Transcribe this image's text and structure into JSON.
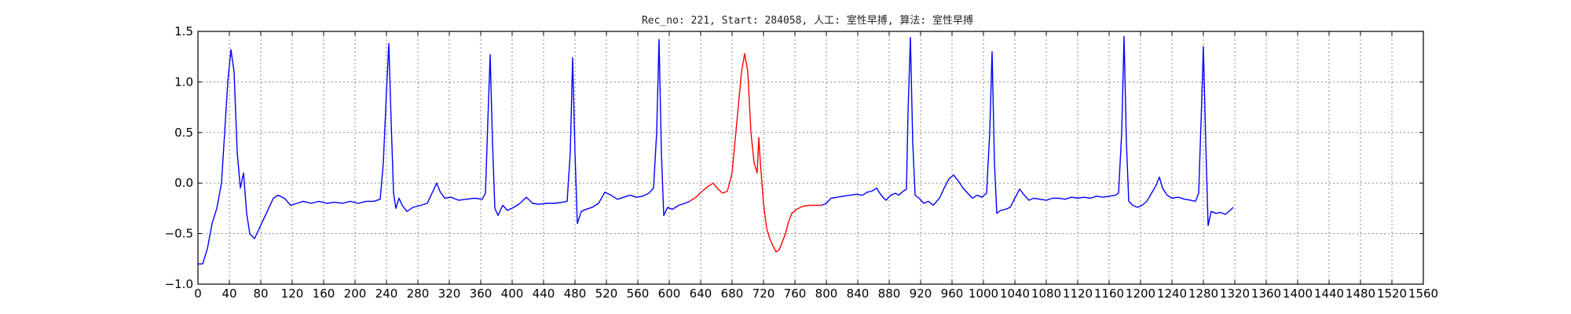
{
  "chart_data": {
    "type": "line",
    "title": "Rec_no: 221, Start: 284058, 人工: 室性早搏, 算法: 室性早搏",
    "xlabel": "",
    "ylabel": "",
    "xlim": [
      0,
      1560
    ],
    "ylim": [
      -1.0,
      1.5
    ],
    "grid": true,
    "y_ticks": [
      -1.0,
      -0.5,
      0.0,
      0.5,
      1.0,
      1.5
    ],
    "y_tick_labels": [
      "−1.0",
      "−0.5",
      "0.0",
      "0.5",
      "1.0",
      "1.5"
    ],
    "x_ticks": [
      0,
      40,
      80,
      120,
      160,
      200,
      240,
      280,
      320,
      360,
      400,
      440,
      480,
      520,
      560,
      600,
      640,
      680,
      720,
      760,
      800,
      840,
      880,
      920,
      960,
      1000,
      1040,
      1080,
      1120,
      1160,
      1200,
      1240,
      1280,
      1320,
      1360,
      1400,
      1440,
      1480,
      1520,
      1560
    ],
    "x_tick_labels": [
      "0",
      "40",
      "80",
      "120",
      "160",
      "200",
      "240",
      "280",
      "320",
      "360",
      "400",
      "440",
      "480",
      "520",
      "560",
      "600",
      "640",
      "680",
      "720",
      "760",
      "800",
      "840",
      "880",
      "920",
      "960",
      "1000",
      "1040",
      "1080",
      "1120",
      "1160",
      "1200",
      "1240",
      "1280",
      "1320",
      "1360",
      "1400",
      "1440",
      "1480",
      "1520",
      "1560"
    ],
    "series": [
      {
        "color": "#0000ff",
        "segments": [
          [
            [
              0,
              -0.8
            ],
            [
              6,
              -0.8
            ],
            [
              12,
              -0.65
            ],
            [
              18,
              -0.4
            ],
            [
              24,
              -0.25
            ],
            [
              30,
              0.0
            ],
            [
              34,
              0.5
            ],
            [
              38,
              1.0
            ],
            [
              42,
              1.32
            ],
            [
              46,
              1.1
            ],
            [
              50,
              0.3
            ],
            [
              54,
              -0.05
            ],
            [
              58,
              0.1
            ],
            [
              62,
              -0.3
            ],
            [
              66,
              -0.5
            ],
            [
              72,
              -0.55
            ],
            [
              78,
              -0.45
            ],
            [
              84,
              -0.35
            ],
            [
              90,
              -0.25
            ],
            [
              96,
              -0.15
            ],
            [
              102,
              -0.12
            ],
            [
              110,
              -0.15
            ],
            [
              118,
              -0.22
            ],
            [
              126,
              -0.2
            ],
            [
              134,
              -0.18
            ],
            [
              144,
              -0.2
            ],
            [
              154,
              -0.18
            ],
            [
              164,
              -0.2
            ],
            [
              174,
              -0.19
            ],
            [
              184,
              -0.2
            ],
            [
              194,
              -0.18
            ],
            [
              204,
              -0.2
            ],
            [
              214,
              -0.18
            ],
            [
              224,
              -0.18
            ],
            [
              232,
              -0.16
            ],
            [
              236,
              0.2
            ],
            [
              240,
              0.9
            ],
            [
              243,
              1.38
            ],
            [
              246,
              0.6
            ],
            [
              249,
              -0.1
            ],
            [
              252,
              -0.25
            ],
            [
              256,
              -0.15
            ],
            [
              260,
              -0.22
            ],
            [
              266,
              -0.28
            ],
            [
              274,
              -0.24
            ],
            [
              284,
              -0.22
            ],
            [
              292,
              -0.2
            ],
            [
              298,
              -0.1
            ],
            [
              304,
              0.0
            ],
            [
              308,
              -0.08
            ],
            [
              314,
              -0.15
            ],
            [
              322,
              -0.14
            ],
            [
              332,
              -0.17
            ],
            [
              342,
              -0.16
            ],
            [
              352,
              -0.15
            ],
            [
              362,
              -0.16
            ],
            [
              366,
              -0.1
            ],
            [
              369,
              0.6
            ],
            [
              372,
              1.27
            ],
            [
              375,
              0.4
            ],
            [
              378,
              -0.25
            ],
            [
              382,
              -0.32
            ],
            [
              388,
              -0.22
            ],
            [
              394,
              -0.27
            ],
            [
              402,
              -0.24
            ],
            [
              410,
              -0.2
            ],
            [
              418,
              -0.14
            ],
            [
              426,
              -0.2
            ],
            [
              434,
              -0.21
            ],
            [
              444,
              -0.2
            ],
            [
              454,
              -0.2
            ],
            [
              464,
              -0.19
            ],
            [
              470,
              -0.18
            ],
            [
              474,
              0.3
            ],
            [
              477,
              1.24
            ],
            [
              480,
              0.3
            ],
            [
              483,
              -0.4
            ],
            [
              488,
              -0.28
            ],
            [
              494,
              -0.26
            ],
            [
              502,
              -0.24
            ],
            [
              510,
              -0.2
            ],
            [
              518,
              -0.09
            ],
            [
              526,
              -0.12
            ],
            [
              534,
              -0.16
            ],
            [
              542,
              -0.14
            ],
            [
              550,
              -0.12
            ],
            [
              558,
              -0.14
            ],
            [
              566,
              -0.13
            ],
            [
              574,
              -0.1
            ],
            [
              580,
              -0.05
            ],
            [
              584,
              0.5
            ],
            [
              587,
              1.42
            ],
            [
              590,
              0.3
            ],
            [
              593,
              -0.32
            ],
            [
              598,
              -0.24
            ],
            [
              604,
              -0.26
            ],
            [
              612,
              -0.22
            ],
            [
              620,
              -0.2
            ],
            [
              626,
              -0.18
            ]
          ],
          [
            [
              794,
              -0.22
            ],
            [
              800,
              -0.2
            ],
            [
              806,
              -0.15
            ],
            [
              814,
              -0.14
            ],
            [
              822,
              -0.13
            ],
            [
              830,
              -0.12
            ],
            [
              838,
              -0.11
            ],
            [
              846,
              -0.12
            ],
            [
              852,
              -0.09
            ],
            [
              858,
              -0.08
            ],
            [
              864,
              -0.05
            ],
            [
              868,
              -0.1
            ],
            [
              872,
              -0.14
            ],
            [
              876,
              -0.17
            ],
            [
              882,
              -0.12
            ],
            [
              888,
              -0.1
            ],
            [
              892,
              -0.12
            ],
            [
              898,
              -0.08
            ],
            [
              902,
              -0.06
            ],
            [
              904,
              0.7
            ],
            [
              907,
              1.44
            ],
            [
              910,
              0.4
            ],
            [
              913,
              -0.12
            ],
            [
              918,
              -0.15
            ],
            [
              924,
              -0.2
            ],
            [
              930,
              -0.18
            ],
            [
              936,
              -0.22
            ],
            [
              944,
              -0.15
            ],
            [
              950,
              -0.05
            ],
            [
              956,
              0.04
            ],
            [
              962,
              0.08
            ],
            [
              968,
              0.02
            ],
            [
              974,
              -0.05
            ],
            [
              980,
              -0.1
            ],
            [
              986,
              -0.15
            ],
            [
              992,
              -0.12
            ],
            [
              998,
              -0.14
            ],
            [
              1004,
              -0.1
            ],
            [
              1008,
              0.5
            ],
            [
              1011,
              1.3
            ],
            [
              1014,
              0.2
            ],
            [
              1017,
              -0.3
            ],
            [
              1022,
              -0.27
            ],
            [
              1028,
              -0.26
            ],
            [
              1034,
              -0.24
            ],
            [
              1040,
              -0.15
            ],
            [
              1046,
              -0.06
            ],
            [
              1052,
              -0.12
            ],
            [
              1058,
              -0.17
            ],
            [
              1064,
              -0.15
            ],
            [
              1072,
              -0.16
            ],
            [
              1080,
              -0.17
            ],
            [
              1088,
              -0.15
            ],
            [
              1096,
              -0.15
            ],
            [
              1104,
              -0.16
            ],
            [
              1112,
              -0.14
            ],
            [
              1120,
              -0.15
            ],
            [
              1128,
              -0.14
            ],
            [
              1136,
              -0.15
            ],
            [
              1144,
              -0.13
            ],
            [
              1152,
              -0.14
            ],
            [
              1160,
              -0.13
            ],
            [
              1168,
              -0.12
            ],
            [
              1172,
              -0.1
            ],
            [
              1176,
              0.5
            ],
            [
              1179,
              1.45
            ],
            [
              1182,
              0.4
            ],
            [
              1185,
              -0.18
            ],
            [
              1190,
              -0.22
            ],
            [
              1196,
              -0.24
            ],
            [
              1202,
              -0.22
            ],
            [
              1208,
              -0.18
            ],
            [
              1214,
              -0.1
            ],
            [
              1220,
              -0.02
            ],
            [
              1224,
              0.06
            ],
            [
              1228,
              -0.05
            ],
            [
              1234,
              -0.12
            ],
            [
              1240,
              -0.15
            ],
            [
              1248,
              -0.14
            ],
            [
              1256,
              -0.16
            ],
            [
              1264,
              -0.17
            ],
            [
              1270,
              -0.18
            ],
            [
              1274,
              -0.1
            ],
            [
              1277,
              0.6
            ],
            [
              1280,
              1.35
            ],
            [
              1283,
              0.4
            ],
            [
              1286,
              -0.42
            ],
            [
              1290,
              -0.28
            ],
            [
              1296,
              -0.3
            ],
            [
              1302,
              -0.29
            ],
            [
              1308,
              -0.31
            ],
            [
              1314,
              -0.27
            ],
            [
              1318,
              -0.24
            ]
          ]
        ]
      },
      {
        "color": "#ff0000",
        "segments": [
          [
            [
              626,
              -0.18
            ],
            [
              634,
              -0.14
            ],
            [
              642,
              -0.08
            ],
            [
              650,
              -0.03
            ],
            [
              656,
              0.0
            ],
            [
              662,
              -0.06
            ],
            [
              668,
              -0.1
            ],
            [
              674,
              -0.08
            ],
            [
              680,
              0.1
            ],
            [
              686,
              0.6
            ],
            [
              692,
              1.1
            ],
            [
              696,
              1.28
            ],
            [
              700,
              1.1
            ],
            [
              704,
              0.5
            ],
            [
              708,
              0.2
            ],
            [
              712,
              0.1
            ],
            [
              714,
              0.45
            ],
            [
              716,
              0.2
            ],
            [
              720,
              -0.2
            ],
            [
              724,
              -0.45
            ],
            [
              728,
              -0.55
            ],
            [
              732,
              -0.62
            ],
            [
              736,
              -0.68
            ],
            [
              740,
              -0.66
            ],
            [
              744,
              -0.58
            ],
            [
              748,
              -0.5
            ],
            [
              752,
              -0.38
            ],
            [
              756,
              -0.3
            ],
            [
              762,
              -0.26
            ],
            [
              770,
              -0.23
            ],
            [
              778,
              -0.22
            ],
            [
              786,
              -0.22
            ],
            [
              794,
              -0.22
            ]
          ]
        ]
      }
    ]
  }
}
